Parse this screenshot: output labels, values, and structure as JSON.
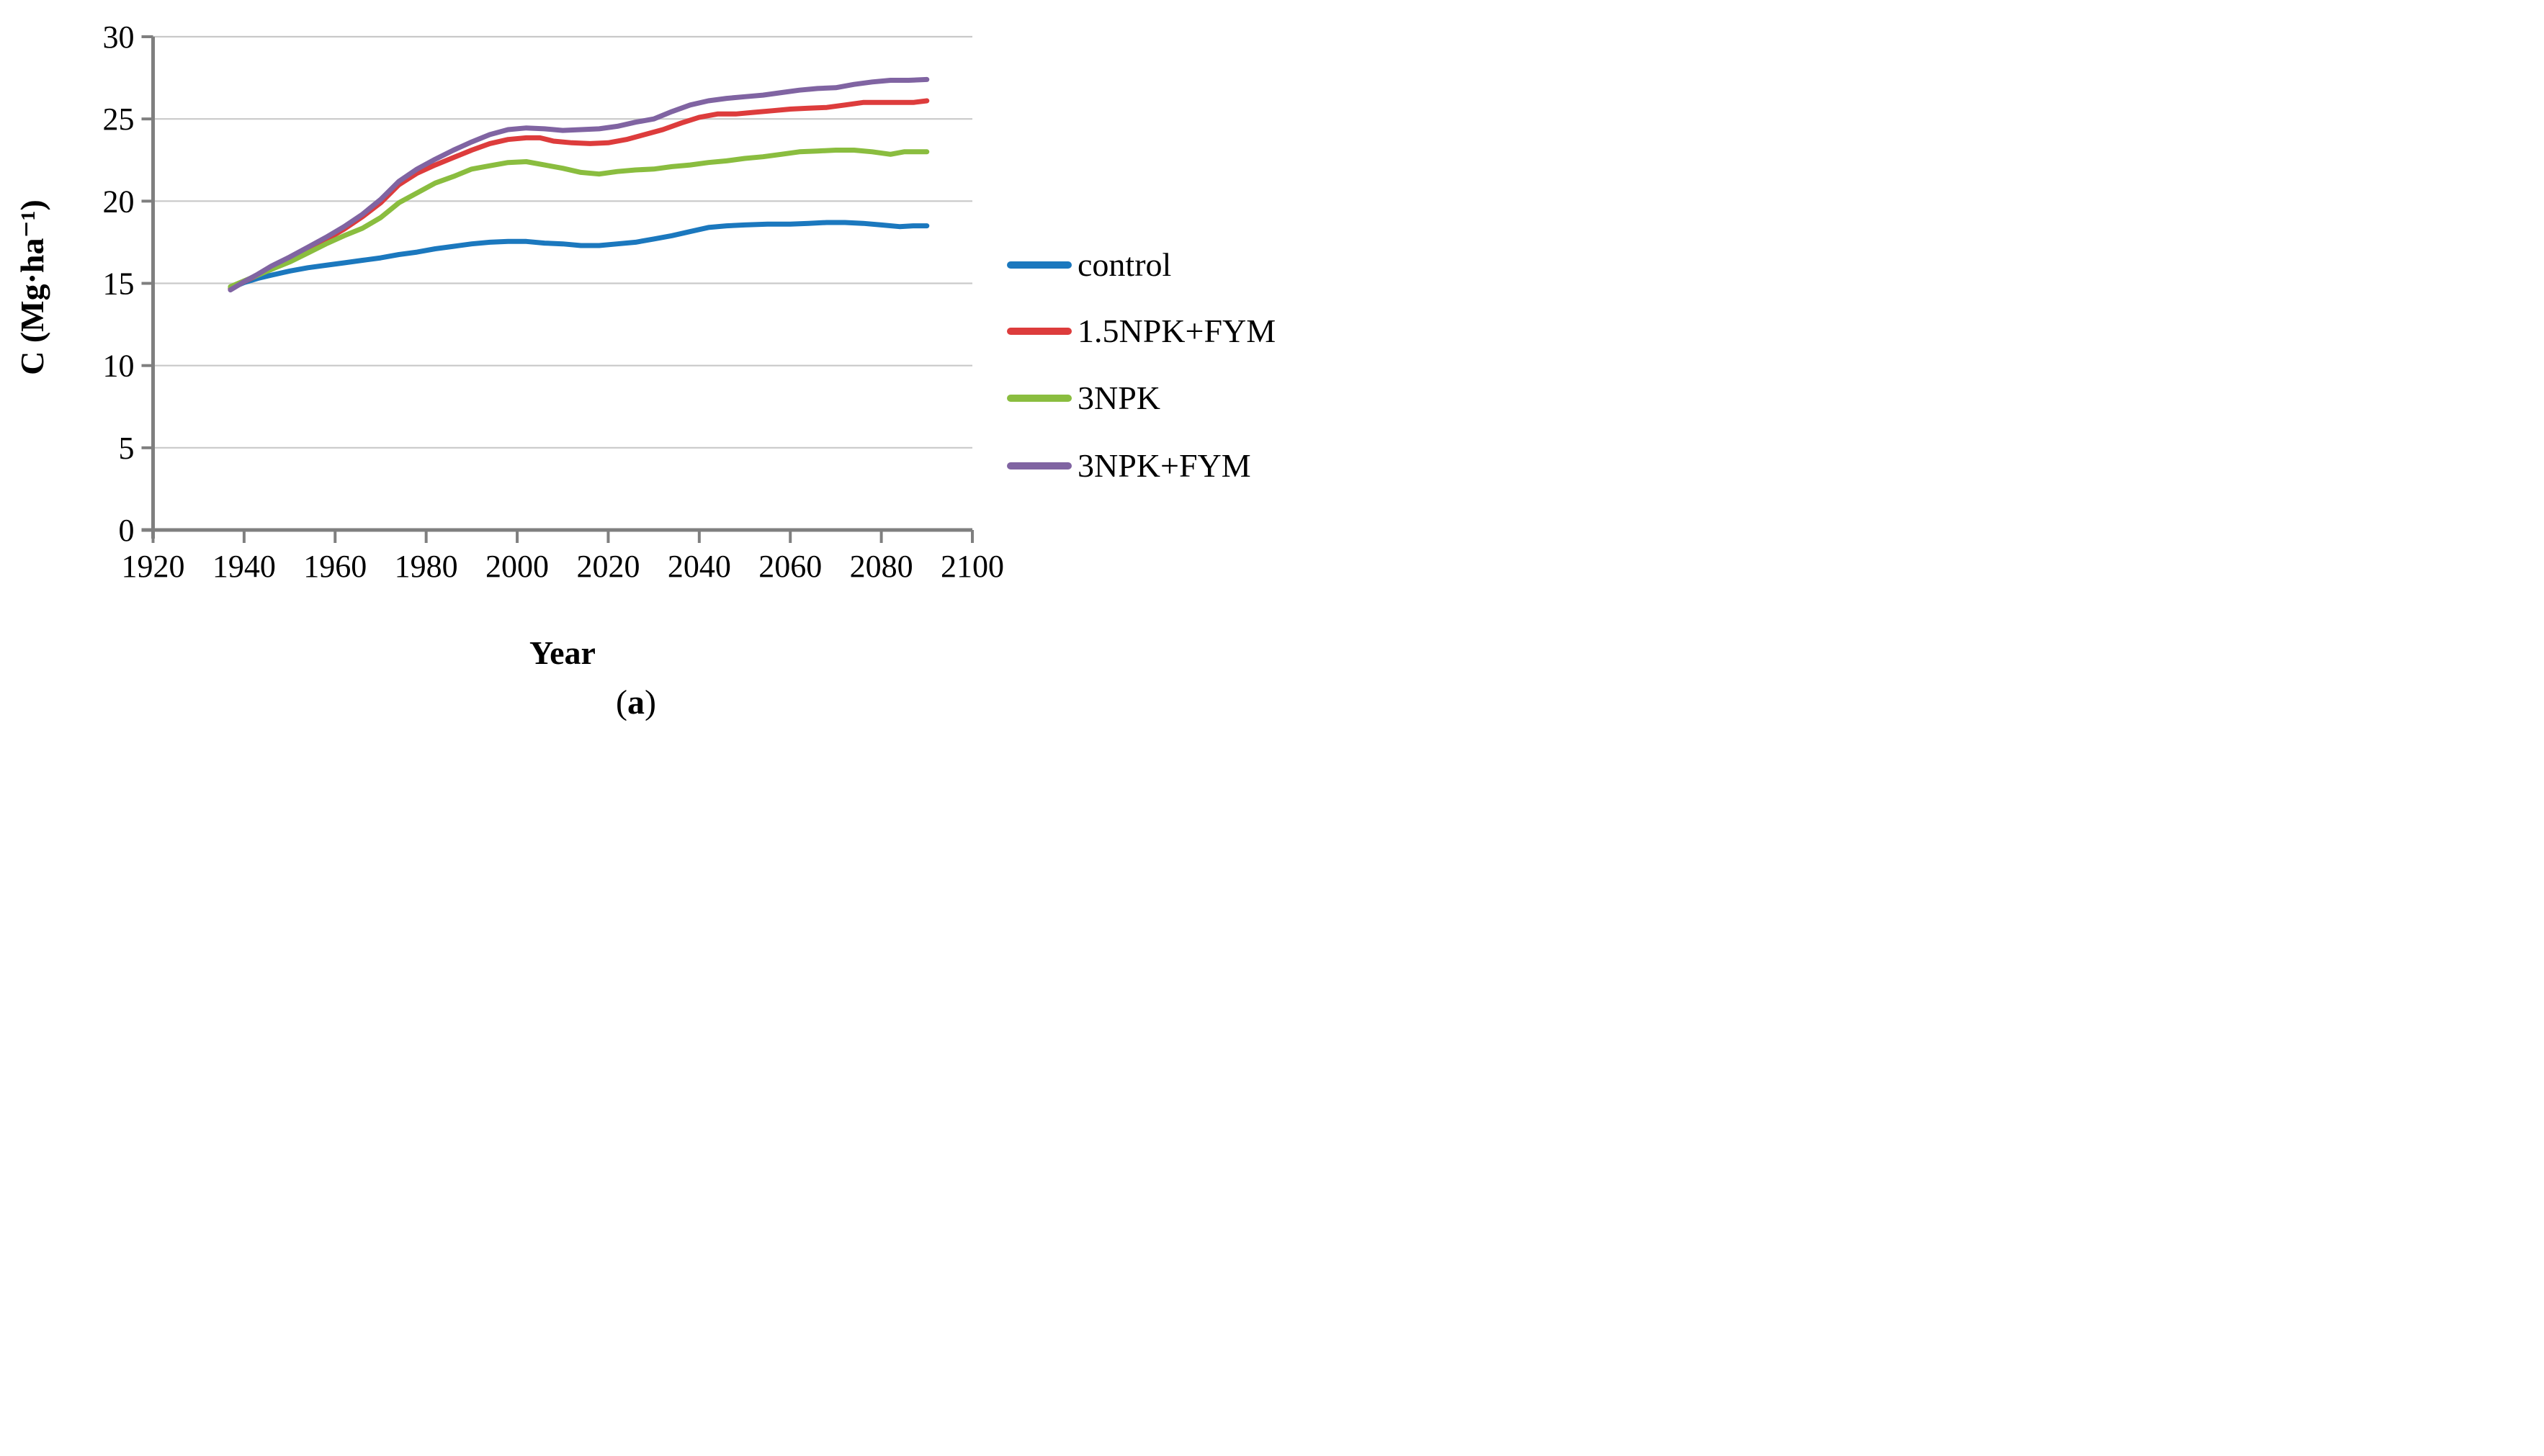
{
  "chart_data": {
    "type": "line",
    "title": "",
    "xlabel": "Year",
    "ylabel": "C (Mg·ha⁻¹)",
    "xlim": [
      1920,
      2100
    ],
    "ylim": [
      0,
      30
    ],
    "x_ticks": [
      1920,
      1940,
      1960,
      1980,
      2000,
      2020,
      2040,
      2060,
      2080,
      2100
    ],
    "y_ticks": [
      0,
      5,
      10,
      15,
      20,
      25,
      30
    ],
    "grid": "horizontal gridlines at every 5 units, light gray",
    "legend_position": "right, outside plot",
    "series": [
      {
        "name": "control",
        "color": "#1B78BE",
        "points": [
          [
            1937,
            14.7
          ],
          [
            1940,
            15.05
          ],
          [
            1943,
            15.3
          ],
          [
            1946,
            15.5
          ],
          [
            1950,
            15.75
          ],
          [
            1954,
            15.95
          ],
          [
            1958,
            16.1
          ],
          [
            1962,
            16.25
          ],
          [
            1966,
            16.4
          ],
          [
            1970,
            16.55
          ],
          [
            1974,
            16.75
          ],
          [
            1978,
            16.9
          ],
          [
            1982,
            17.1
          ],
          [
            1986,
            17.25
          ],
          [
            1990,
            17.4
          ],
          [
            1994,
            17.5
          ],
          [
            1998,
            17.55
          ],
          [
            2002,
            17.55
          ],
          [
            2006,
            17.45
          ],
          [
            2010,
            17.4
          ],
          [
            2014,
            17.3
          ],
          [
            2018,
            17.3
          ],
          [
            2022,
            17.4
          ],
          [
            2026,
            17.5
          ],
          [
            2030,
            17.7
          ],
          [
            2034,
            17.9
          ],
          [
            2038,
            18.15
          ],
          [
            2042,
            18.4
          ],
          [
            2046,
            18.5
          ],
          [
            2050,
            18.55
          ],
          [
            2055,
            18.6
          ],
          [
            2060,
            18.6
          ],
          [
            2064,
            18.65
          ],
          [
            2068,
            18.7
          ],
          [
            2072,
            18.7
          ],
          [
            2076,
            18.65
          ],
          [
            2080,
            18.55
          ],
          [
            2084,
            18.45
          ],
          [
            2087,
            18.5
          ],
          [
            2090,
            18.5
          ]
        ]
      },
      {
        "name": "1.5NPK+FYM",
        "color": "#DD3C3C",
        "points": [
          [
            1937,
            14.65
          ],
          [
            1940,
            15.1
          ],
          [
            1943,
            15.5
          ],
          [
            1946,
            15.95
          ],
          [
            1950,
            16.5
          ],
          [
            1954,
            17.1
          ],
          [
            1958,
            17.65
          ],
          [
            1962,
            18.3
          ],
          [
            1966,
            19.05
          ],
          [
            1970,
            19.9
          ],
          [
            1974,
            21.0
          ],
          [
            1978,
            21.7
          ],
          [
            1982,
            22.2
          ],
          [
            1986,
            22.65
          ],
          [
            1990,
            23.1
          ],
          [
            1994,
            23.5
          ],
          [
            1998,
            23.75
          ],
          [
            2002,
            23.85
          ],
          [
            2005,
            23.85
          ],
          [
            2008,
            23.65
          ],
          [
            2012,
            23.55
          ],
          [
            2016,
            23.5
          ],
          [
            2020,
            23.55
          ],
          [
            2024,
            23.75
          ],
          [
            2028,
            24.05
          ],
          [
            2032,
            24.35
          ],
          [
            2036,
            24.75
          ],
          [
            2040,
            25.1
          ],
          [
            2044,
            25.3
          ],
          [
            2048,
            25.3
          ],
          [
            2052,
            25.4
          ],
          [
            2056,
            25.5
          ],
          [
            2060,
            25.6
          ],
          [
            2064,
            25.65
          ],
          [
            2068,
            25.7
          ],
          [
            2072,
            25.85
          ],
          [
            2076,
            26.0
          ],
          [
            2080,
            26.0
          ],
          [
            2084,
            26.0
          ],
          [
            2087,
            26.0
          ],
          [
            2090,
            26.1
          ]
        ]
      },
      {
        "name": "3NPK",
        "color": "#8ABD3F",
        "points": [
          [
            1937,
            14.8
          ],
          [
            1940,
            15.15
          ],
          [
            1943,
            15.5
          ],
          [
            1946,
            15.85
          ],
          [
            1950,
            16.3
          ],
          [
            1954,
            16.85
          ],
          [
            1958,
            17.4
          ],
          [
            1962,
            17.9
          ],
          [
            1966,
            18.35
          ],
          [
            1970,
            19.0
          ],
          [
            1974,
            19.9
          ],
          [
            1978,
            20.5
          ],
          [
            1982,
            21.1
          ],
          [
            1986,
            21.5
          ],
          [
            1990,
            21.95
          ],
          [
            1994,
            22.15
          ],
          [
            1998,
            22.35
          ],
          [
            2002,
            22.4
          ],
          [
            2006,
            22.2
          ],
          [
            2010,
            22.0
          ],
          [
            2014,
            21.75
          ],
          [
            2018,
            21.65
          ],
          [
            2022,
            21.8
          ],
          [
            2026,
            21.9
          ],
          [
            2030,
            21.95
          ],
          [
            2034,
            22.1
          ],
          [
            2038,
            22.2
          ],
          [
            2042,
            22.35
          ],
          [
            2046,
            22.45
          ],
          [
            2050,
            22.6
          ],
          [
            2054,
            22.7
          ],
          [
            2058,
            22.85
          ],
          [
            2062,
            23.0
          ],
          [
            2066,
            23.05
          ],
          [
            2070,
            23.1
          ],
          [
            2074,
            23.1
          ],
          [
            2078,
            23.0
          ],
          [
            2082,
            22.85
          ],
          [
            2085,
            23.0
          ],
          [
            2090,
            23.0
          ]
        ]
      },
      {
        "name": "3NPK+FYM",
        "color": "#8064A2",
        "points": [
          [
            1937,
            14.6
          ],
          [
            1940,
            15.1
          ],
          [
            1943,
            15.55
          ],
          [
            1946,
            16.05
          ],
          [
            1950,
            16.6
          ],
          [
            1954,
            17.2
          ],
          [
            1958,
            17.8
          ],
          [
            1962,
            18.45
          ],
          [
            1966,
            19.2
          ],
          [
            1970,
            20.1
          ],
          [
            1974,
            21.2
          ],
          [
            1978,
            21.95
          ],
          [
            1982,
            22.55
          ],
          [
            1986,
            23.1
          ],
          [
            1990,
            23.6
          ],
          [
            1994,
            24.05
          ],
          [
            1998,
            24.35
          ],
          [
            2002,
            24.45
          ],
          [
            2006,
            24.4
          ],
          [
            2010,
            24.3
          ],
          [
            2014,
            24.35
          ],
          [
            2018,
            24.4
          ],
          [
            2022,
            24.55
          ],
          [
            2026,
            24.8
          ],
          [
            2030,
            25.0
          ],
          [
            2034,
            25.45
          ],
          [
            2038,
            25.85
          ],
          [
            2042,
            26.1
          ],
          [
            2046,
            26.25
          ],
          [
            2050,
            26.35
          ],
          [
            2054,
            26.45
          ],
          [
            2058,
            26.6
          ],
          [
            2062,
            26.75
          ],
          [
            2066,
            26.85
          ],
          [
            2070,
            26.9
          ],
          [
            2074,
            27.1
          ],
          [
            2078,
            27.25
          ],
          [
            2082,
            27.35
          ],
          [
            2086,
            27.35
          ],
          [
            2090,
            27.4
          ]
        ]
      }
    ]
  },
  "axis_titles": {
    "x": "Year",
    "y": "C (Mg·ha⁻¹)"
  },
  "caption": {
    "prefix": "(",
    "letter": "a",
    "suffix": ")"
  },
  "colors": {
    "gridline": "#C9C9C9",
    "axis": "#7F7F7F",
    "text": "#000000"
  }
}
